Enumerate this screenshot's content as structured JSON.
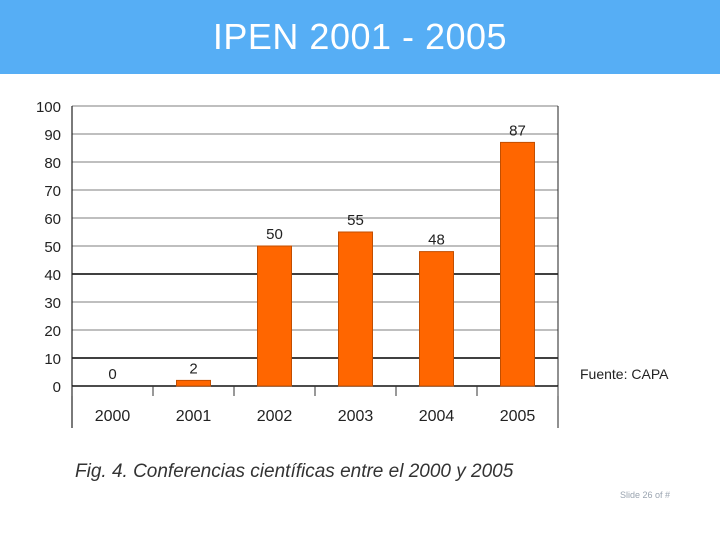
{
  "slide": {
    "title": "IPEN 2001 - 2005",
    "source_note": "Fuente: CAPA",
    "caption": "Fig. 4. Conferencias científicas entre el 2000 y 2005",
    "slide_number": "Slide 26 of #"
  },
  "colors": {
    "title_bar": "#56aef5",
    "bar": "#ff6600",
    "bar_edge": "#c24e00"
  },
  "chart_data": {
    "type": "bar",
    "title": "",
    "xlabel": "",
    "ylabel": "",
    "categories": [
      "2000",
      "2001",
      "2002",
      "2003",
      "2004",
      "2005"
    ],
    "values": [
      0,
      2,
      50,
      55,
      48,
      87
    ],
    "ylim": [
      0,
      100
    ],
    "yticks": [
      0,
      10,
      20,
      30,
      40,
      50,
      60,
      70,
      80,
      90,
      100
    ],
    "grid": true
  }
}
